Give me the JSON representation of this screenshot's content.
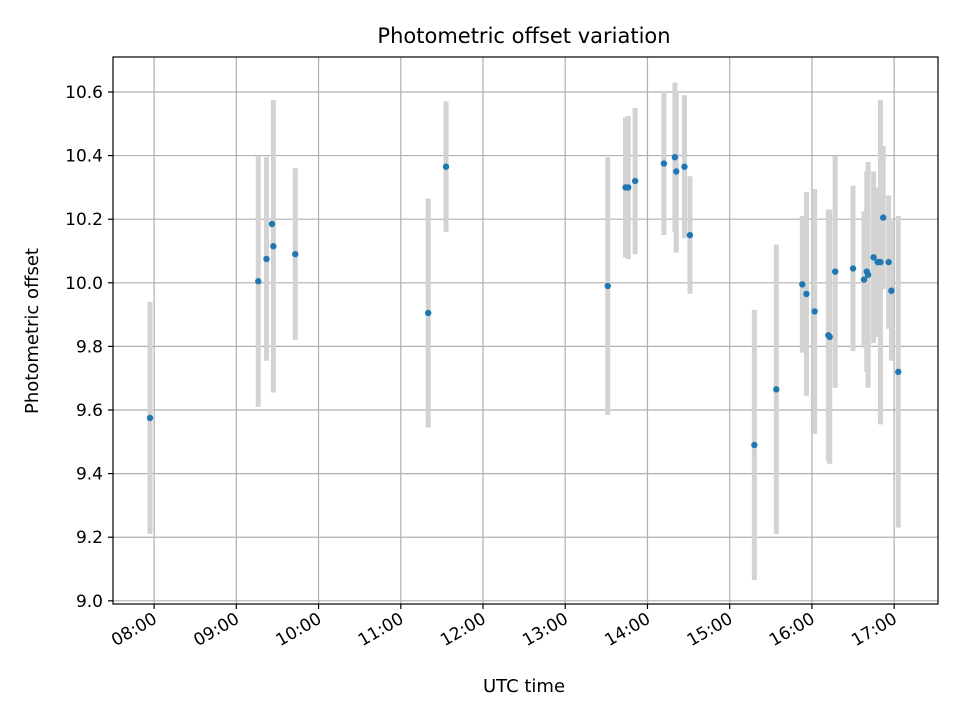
{
  "chart_data": {
    "type": "scatter",
    "title": "Photometric offset variation",
    "xlabel": "UTC time",
    "ylabel": "Photometric offset",
    "xlim": [
      "07:30",
      "17:32"
    ],
    "ylim": [
      8.99,
      10.71
    ],
    "grid": true,
    "x_tick_labels": [
      "08:00",
      "09:00",
      "10:00",
      "11:00",
      "12:00",
      "13:00",
      "14:00",
      "15:00",
      "16:00",
      "17:00"
    ],
    "y_ticks": [
      9.0,
      9.2,
      9.4,
      9.6,
      9.8,
      10.0,
      10.2,
      10.4,
      10.6
    ],
    "y_tick_labels": [
      "9.0",
      "9.2",
      "9.4",
      "9.6",
      "9.8",
      "10.0",
      "10.2",
      "10.4",
      "10.6"
    ],
    "colors": {
      "point": "#1f77b4",
      "errorbar": "#d3d3d3"
    },
    "series": [
      {
        "points": [
          {
            "time": "07:57",
            "y": 9.575,
            "err": 0.365
          },
          {
            "time": "09:16",
            "y": 10.005,
            "err": 0.395
          },
          {
            "time": "09:22",
            "y": 10.075,
            "err": 0.32
          },
          {
            "time": "09:26",
            "y": 10.185,
            "err": 0.0
          },
          {
            "time": "09:27",
            "y": 10.115,
            "err": 0.46
          },
          {
            "time": "09:43",
            "y": 10.09,
            "err": 0.27
          },
          {
            "time": "11:20",
            "y": 9.905,
            "err": 0.36
          },
          {
            "time": "11:33",
            "y": 10.365,
            "err": 0.205
          },
          {
            "time": "13:31",
            "y": 9.99,
            "err": 0.405
          },
          {
            "time": "13:44",
            "y": 10.3,
            "err": 0.22
          },
          {
            "time": "13:46",
            "y": 10.3,
            "err": 0.225
          },
          {
            "time": "13:51",
            "y": 10.32,
            "err": 0.23
          },
          {
            "time": "14:12",
            "y": 10.375,
            "err": 0.225
          },
          {
            "time": "14:20",
            "y": 10.395,
            "err": 0.235
          },
          {
            "time": "14:21",
            "y": 10.35,
            "err": 0.255
          },
          {
            "time": "14:27",
            "y": 10.365,
            "err": 0.225
          },
          {
            "time": "14:31",
            "y": 10.15,
            "err": 0.185
          },
          {
            "time": "15:18",
            "y": 9.49,
            "err": 0.425
          },
          {
            "time": "15:34",
            "y": 9.665,
            "err": 0.455
          },
          {
            "time": "15:53",
            "y": 9.995,
            "err": 0.215
          },
          {
            "time": "15:56",
            "y": 9.965,
            "err": 0.32
          },
          {
            "time": "16:02",
            "y": 9.91,
            "err": 0.385
          },
          {
            "time": "16:12",
            "y": 9.835,
            "err": 0.395
          },
          {
            "time": "16:13",
            "y": 9.83,
            "err": 0.4
          },
          {
            "time": "16:17",
            "y": 10.035,
            "err": 0.365
          },
          {
            "time": "16:30",
            "y": 10.045,
            "err": 0.26
          },
          {
            "time": "16:38",
            "y": 10.01,
            "err": 0.215
          },
          {
            "time": "16:40",
            "y": 10.035,
            "err": 0.315
          },
          {
            "time": "16:41",
            "y": 10.025,
            "err": 0.355
          },
          {
            "time": "16:45",
            "y": 10.08,
            "err": 0.27
          },
          {
            "time": "16:48",
            "y": 10.065,
            "err": 0.235
          },
          {
            "time": "16:50",
            "y": 10.065,
            "err": 0.51
          },
          {
            "time": "16:52",
            "y": 10.205,
            "err": 0.225
          },
          {
            "time": "16:56",
            "y": 10.065,
            "err": 0.21
          },
          {
            "time": "16:58",
            "y": 9.975,
            "err": 0.22
          },
          {
            "time": "17:03",
            "y": 9.72,
            "err": 0.49
          }
        ]
      }
    ]
  }
}
